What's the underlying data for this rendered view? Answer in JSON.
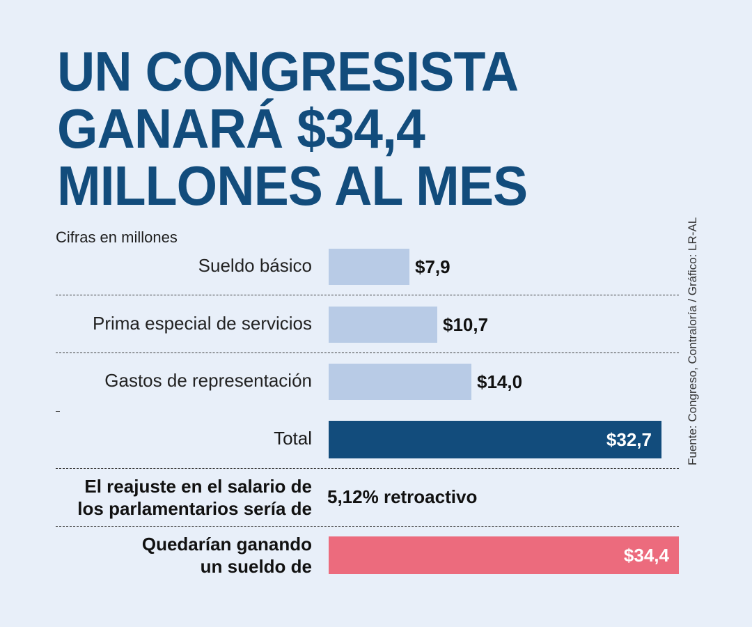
{
  "title": {
    "line1": "UN CONGRESISTA",
    "line2": "GANARÁ $34,4",
    "line3": "MILLONES AL MES"
  },
  "subtitle": "Cifras en millones",
  "source": "Fuente: Congreso, Contraloría / Gráfico: LR-AL",
  "colors": {
    "background": "#e8eff9",
    "title": "#124c7c",
    "component_bar": "#b8cbe6",
    "total_bar": "#124c7c",
    "final_bar": "#ec6b7d"
  },
  "chart_data": {
    "type": "bar",
    "orientation": "horizontal",
    "title": "UN CONGRESISTA GANARÁ $34,4 MILLONES AL MES",
    "unit": "millones",
    "categories": [
      "Sueldo básico",
      "Prima especial de servicios",
      "Gastos de representación",
      "Total",
      "Quedarían ganando un sueldo de"
    ],
    "values": [
      7.9,
      10.7,
      14.0,
      32.7,
      34.4
    ],
    "value_labels": [
      "$7,9",
      "$10,7",
      "$14,0",
      "$32,7",
      "$34,4"
    ],
    "xlim": [
      0,
      34.4
    ]
  },
  "rows": {
    "sueldo": {
      "label": "Sueldo básico",
      "value_label": "$7,9"
    },
    "prima": {
      "label": "Prima especial de servicios",
      "value_label": "$10,7"
    },
    "gastos": {
      "label": "Gastos de representación",
      "value_label": "$14,0"
    },
    "total": {
      "label": "Total",
      "value_label": "$32,7"
    },
    "reajuste": {
      "label_line1": "El reajuste en el salario de",
      "label_line2": "los parlamentarios sería de",
      "value": "5,12% retroactivo"
    },
    "final": {
      "label_line1": "Quedarían ganando",
      "label_line2": "un sueldo de",
      "value_label": "$34,4"
    }
  }
}
